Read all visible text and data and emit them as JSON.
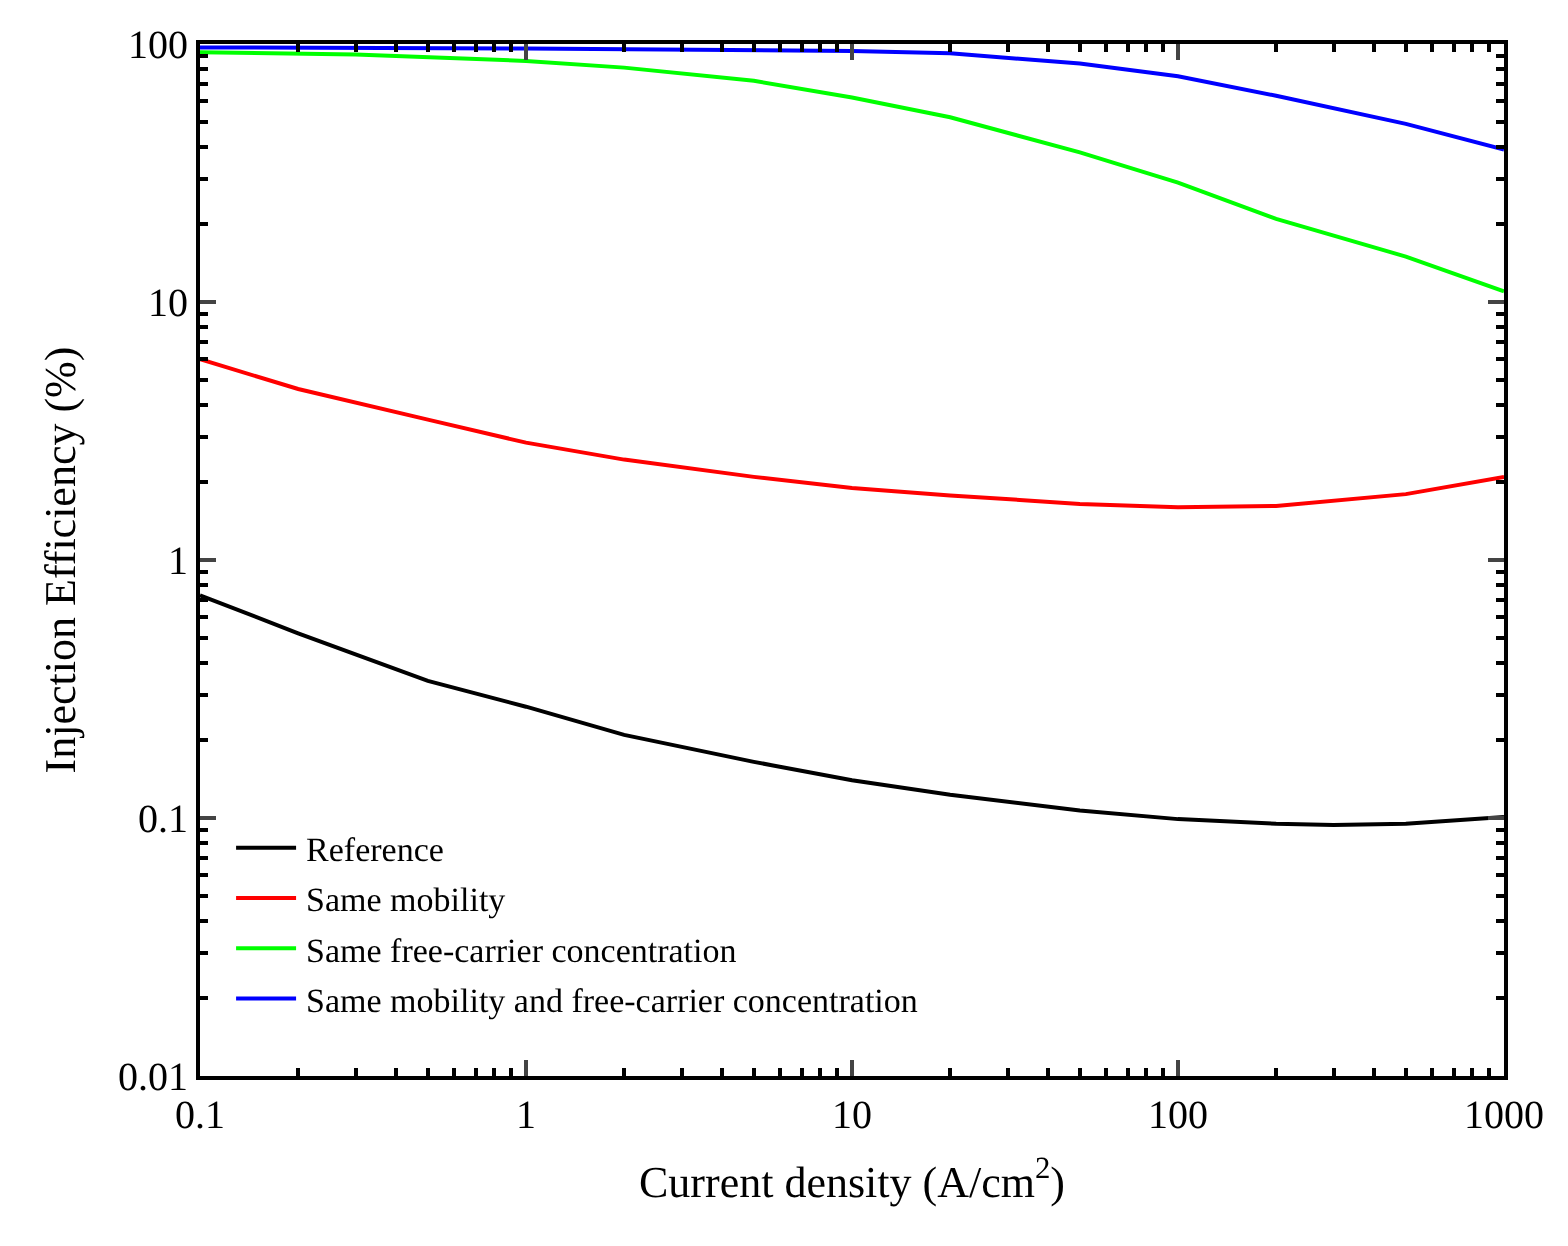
{
  "chart_data": {
    "type": "line",
    "xlabel": "Current density (A/cm$^{2}$)",
    "ylabel": "Injection Efficiency (%)",
    "log": "xy",
    "xlim": [
      0.1,
      1000
    ],
    "ylim": [
      0.01,
      100
    ],
    "xticks": [
      0.1,
      1,
      10,
      100,
      1000
    ],
    "yticks": [
      0.01,
      0.1,
      1,
      10,
      100
    ],
    "legend": "bottom left",
    "line_style": "solid",
    "marker": "none",
    "series": [
      {
        "name": "Reference",
        "color": "#000000",
        "x": [
          0.1,
          0.2,
          0.5,
          1,
          2,
          5,
          10,
          20,
          50,
          100,
          200,
          300,
          500,
          1000
        ],
        "values": [
          0.73,
          0.52,
          0.34,
          0.27,
          0.21,
          0.165,
          0.14,
          0.123,
          0.107,
          0.099,
          0.095,
          0.094,
          0.095,
          0.101
        ]
      },
      {
        "name": "Same mobility",
        "color": "#ff0000",
        "x": [
          0.1,
          0.2,
          0.5,
          1,
          2,
          5,
          10,
          20,
          50,
          100,
          200,
          500,
          1000
        ],
        "values": [
          6.0,
          4.6,
          3.5,
          2.85,
          2.45,
          2.1,
          1.9,
          1.78,
          1.65,
          1.6,
          1.62,
          1.8,
          2.1
        ]
      },
      {
        "name": "Same free-carrier concentration",
        "color": "#00ff00",
        "x": [
          0.1,
          0.3,
          1,
          2,
          5,
          10,
          20,
          50,
          100,
          200,
          500,
          1000
        ],
        "values": [
          93,
          91,
          86,
          81,
          72,
          62,
          52,
          38,
          29,
          21,
          15,
          11
        ]
      },
      {
        "name": "Same mobility and free-carrier concentration",
        "color": "#0000ff",
        "x": [
          0.1,
          1,
          10,
          20,
          50,
          100,
          200,
          500,
          1000
        ],
        "values": [
          97,
          96,
          94,
          92,
          84,
          75,
          63,
          49,
          39
        ]
      }
    ]
  }
}
